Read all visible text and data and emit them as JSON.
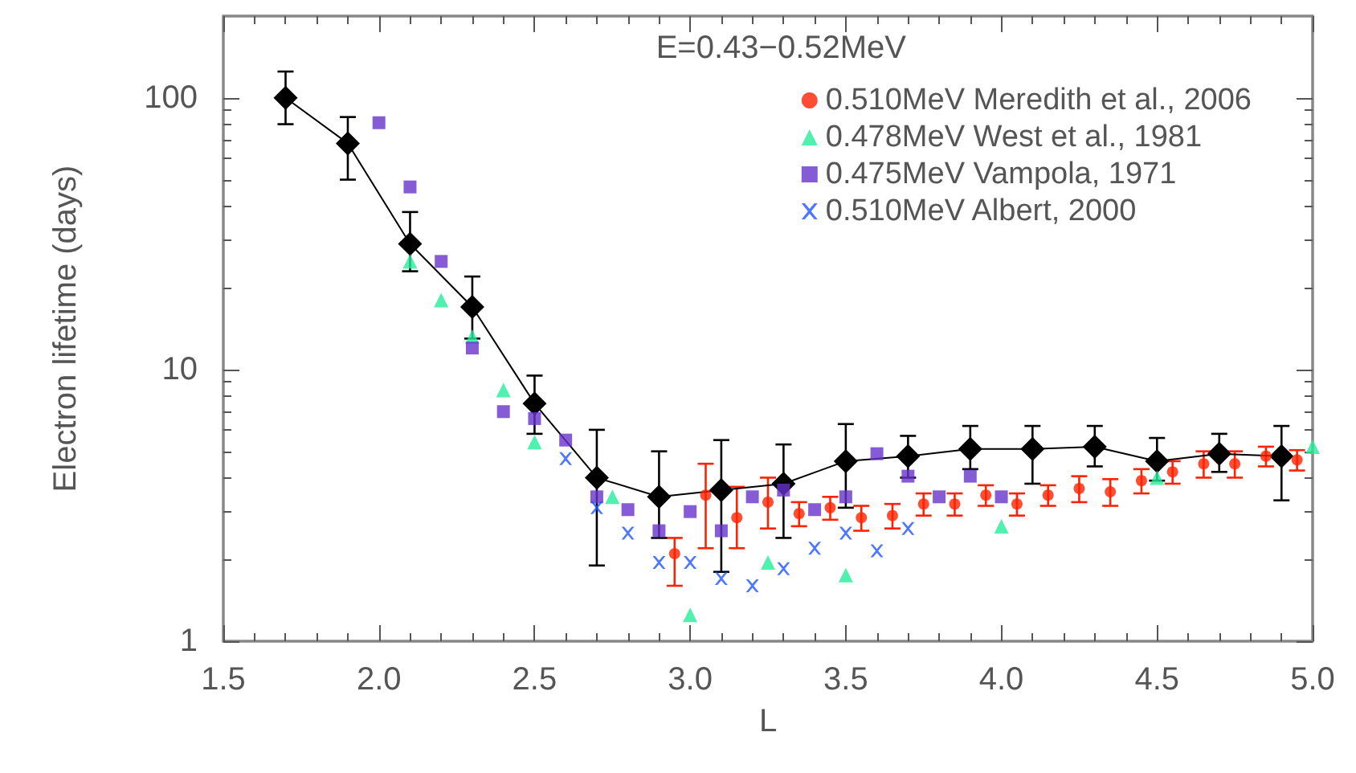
{
  "chart_data": {
    "type": "scatter",
    "legend_title": "E=0.43−0.52MeV",
    "xlabel": "L",
    "ylabel": "Electron lifetime (days)",
    "log": "y",
    "grid": false,
    "legend": "top right",
    "xlim": [
      1.5,
      5.0
    ],
    "xticks": [
      1.5,
      {
        "value": 2,
        "label": "2.0"
      },
      2.5,
      {
        "value": 3,
        "label": "3.0"
      },
      3.5,
      {
        "value": 4,
        "label": "4.0"
      },
      4.5,
      {
        "value": 5,
        "label": "5.0"
      }
    ],
    "ylim": [
      1,
      200
    ],
    "yticks": [
      1,
      10,
      100
    ],
    "series": [
      {
        "type": "line",
        "color": "#000000",
        "marker": "diamond",
        "line_style": "solid",
        "x": [
          1.7,
          1.9,
          2.1,
          2.3,
          2.5,
          2.7,
          2.9,
          3.1,
          3.3,
          3.5,
          3.7,
          3.9,
          4.1,
          4.3,
          4.5,
          4.7,
          4.9
        ],
        "values": [
          100,
          68,
          29,
          17,
          7.5,
          4,
          3.4,
          3.6,
          3.8,
          4.6,
          4.8,
          5.1,
          5.1,
          5.2,
          4.6,
          4.9,
          4.8
        ],
        "errors": [
          [
            80,
            125
          ],
          [
            50,
            85
          ],
          [
            23,
            38
          ],
          [
            13,
            22
          ],
          [
            5.8,
            9.5
          ],
          [
            1.9,
            6
          ],
          [
            2.4,
            5
          ],
          [
            1.8,
            5.5
          ],
          [
            2.4,
            5.3
          ],
          [
            3.1,
            6.3
          ],
          [
            4,
            5.7
          ],
          [
            4.3,
            6.2
          ],
          [
            3.8,
            6.2
          ],
          [
            4.4,
            6.2
          ],
          [
            3.9,
            5.6
          ],
          [
            4.2,
            5.8
          ],
          [
            3.3,
            6.2
          ]
        ]
      },
      {
        "name": "0.510MeV Meredith et al., 2006",
        "color": "#ff2200",
        "marker": "circle",
        "x": [
          2.95,
          3.05,
          3.15,
          3.25,
          3.35,
          3.45,
          3.55,
          3.65,
          3.75,
          3.85,
          3.95,
          4.05,
          4.15,
          4.25,
          4.35,
          4.45,
          4.55,
          4.65,
          4.75,
          4.85,
          4.95
        ],
        "values": [
          2.1,
          3.45,
          2.85,
          3.25,
          2.95,
          3.1,
          2.85,
          2.9,
          3.2,
          3.2,
          3.45,
          3.2,
          3.45,
          3.65,
          3.55,
          3.9,
          4.2,
          4.5,
          4.5,
          4.8,
          4.65
        ],
        "errors": [
          [
            1.6,
            2.4
          ],
          [
            2.2,
            4.5
          ],
          [
            2.2,
            3.7
          ],
          [
            2.6,
            4
          ],
          0.3,
          0.3,
          0.3,
          0.3,
          0.3,
          0.3,
          0.3,
          0.3,
          0.3,
          0.4,
          0.4,
          0.4,
          0.4,
          0.5,
          0.5,
          0.4,
          0.4
        ]
      },
      {
        "name": "0.478MeV West et al., 1981",
        "color": "#22ee99",
        "marker": "triangle",
        "x": [
          2.1,
          2.2,
          2.3,
          2.4,
          2.5,
          2.75,
          3.0,
          3.25,
          3.5,
          4.0,
          4.5,
          5.0
        ],
        "values": [
          25,
          18,
          13.2,
          8.4,
          5.4,
          3.4,
          1.25,
          1.95,
          1.75,
          2.65,
          4,
          5.2
        ]
      },
      {
        "name": "0.475MeV Vampola, 1971",
        "color": "#6633cc",
        "marker": "square",
        "x": [
          2.0,
          2.1,
          2.2,
          2.3,
          2.4,
          2.5,
          2.6,
          2.7,
          2.8,
          2.9,
          3.0,
          3.1,
          3.2,
          3.3,
          3.4,
          3.5,
          3.6,
          3.7,
          3.8,
          3.9,
          4.0
        ],
        "values": [
          81,
          47,
          25,
          12,
          7,
          6.6,
          5.5,
          3.4,
          3.05,
          2.55,
          3,
          2.55,
          3.4,
          3.6,
          3.05,
          3.4,
          4.9,
          4.05,
          3.4,
          4.05,
          3.4
        ]
      },
      {
        "name": "0.510MeV Albert, 2000",
        "color": "#2255ff",
        "marker": "cross",
        "x": [
          2.6,
          2.7,
          2.8,
          2.9,
          3.0,
          3.1,
          3.2,
          3.3,
          3.4,
          3.5,
          3.6,
          3.7
        ],
        "values": [
          4.7,
          3.1,
          2.5,
          1.95,
          1.95,
          1.7,
          1.6,
          1.85,
          2.2,
          2.5,
          2.15,
          2.6
        ]
      }
    ]
  }
}
